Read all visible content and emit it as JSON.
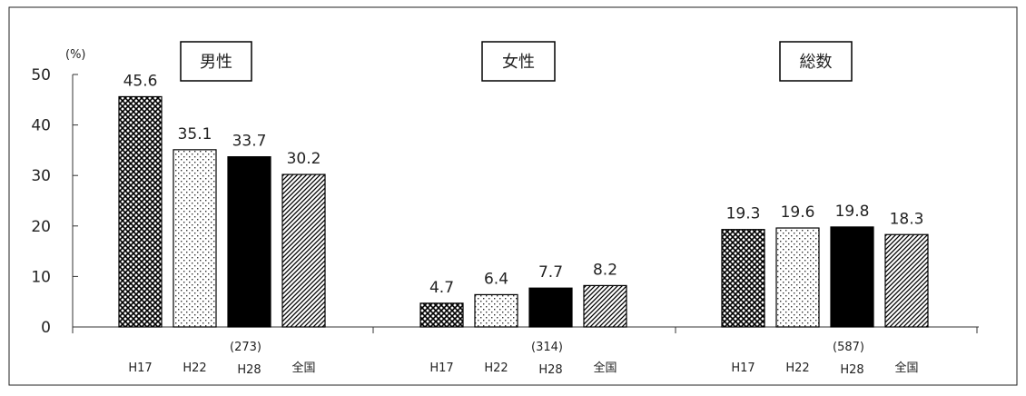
{
  "chart_data": {
    "type": "bar",
    "y_unit_label": "(%)",
    "ylim": [
      0,
      50
    ],
    "yticks": [
      "0",
      "10",
      "20",
      "30",
      "40",
      "50"
    ],
    "grid": false,
    "categories": [
      "H17",
      "H22",
      "H28",
      "全国"
    ],
    "groups": [
      {
        "title": "男性",
        "sample_size": "(273)",
        "values": [
          45.6,
          35.1,
          33.7,
          30.2
        ],
        "labels": [
          "45.6",
          "35.1",
          "33.7",
          "30.2"
        ]
      },
      {
        "title": "女性",
        "sample_size": "(314)",
        "values": [
          4.7,
          6.4,
          7.7,
          8.2
        ],
        "labels": [
          "4.7",
          "6.4",
          "7.7",
          "8.2"
        ]
      },
      {
        "title": "総数",
        "sample_size": "(587)",
        "values": [
          19.3,
          19.6,
          19.8,
          18.3
        ],
        "labels": [
          "19.3",
          "19.6",
          "19.8",
          "18.3"
        ]
      }
    ],
    "bar_styles": [
      "crosshatch",
      "dotted",
      "solid-black",
      "diagonal-hatch"
    ],
    "colors": {
      "bar_fill": "#000000",
      "bar_bg": "#ffffff",
      "text": "#222222",
      "axis": "#333333"
    }
  }
}
